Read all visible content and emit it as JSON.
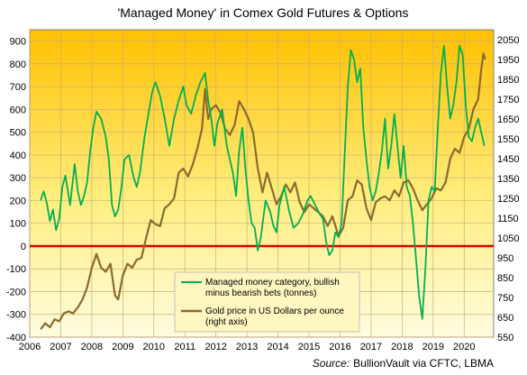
{
  "chart_data": {
    "type": "line",
    "title": "'Managed Money' in Comex Gold Futures & Options",
    "source_label": "Source:",
    "source_text": "BullionVault via CFTC, LBMA",
    "x_ticks": [
      "2006",
      "2007",
      "2008",
      "2009",
      "2010",
      "2011",
      "2012",
      "2013",
      "2014",
      "2015",
      "2016",
      "2017",
      "2018",
      "2019",
      "2020"
    ],
    "xlim": [
      2006.0,
      2020.95
    ],
    "y_left": {
      "lim": [
        -400,
        950
      ],
      "ticks": [
        "900",
        "800",
        "700",
        "600",
        "500",
        "400",
        "300",
        "200",
        "100",
        "0",
        "-100",
        "-200",
        "-300",
        "-400"
      ]
    },
    "y_right": {
      "lim": [
        550,
        2100
      ],
      "ticks": [
        "2050",
        "1950",
        "1850",
        "1750",
        "1650",
        "1550",
        "1450",
        "1350",
        "1250",
        "1150",
        "1050",
        "950",
        "850",
        "750",
        "650",
        "550"
      ]
    },
    "grid": true,
    "zero_line": true,
    "legend_position": "bottom-center",
    "colors": {
      "managed_money": "#00b050",
      "gold_price": "#8b6a30",
      "zero_line": "#dd0000",
      "bg_top": "#ffc000",
      "bg_bottom": "#fffce0"
    },
    "series": [
      {
        "name": "Managed money category, bullish minus bearish bets (tonnes)",
        "legend_line1": "Managed money category, bullish",
        "legend_line2": "minus bearish bets (tonnes)",
        "axis": "left",
        "x": [
          2006.35,
          2006.45,
          2006.55,
          2006.65,
          2006.75,
          2006.85,
          2006.95,
          2007.05,
          2007.15,
          2007.3,
          2007.45,
          2007.55,
          2007.65,
          2007.75,
          2007.85,
          2007.95,
          2008.05,
          2008.15,
          2008.3,
          2008.45,
          2008.55,
          2008.65,
          2008.75,
          2008.85,
          2008.95,
          2009.05,
          2009.2,
          2009.35,
          2009.45,
          2009.55,
          2009.7,
          2009.85,
          2009.95,
          2010.05,
          2010.2,
          2010.35,
          2010.5,
          2010.65,
          2010.8,
          2010.95,
          2011.05,
          2011.2,
          2011.35,
          2011.5,
          2011.65,
          2011.75,
          2011.85,
          2011.95,
          2012.05,
          2012.2,
          2012.35,
          2012.45,
          2012.55,
          2012.65,
          2012.75,
          2012.85,
          2012.95,
          2013.05,
          2013.15,
          2013.25,
          2013.35,
          2013.45,
          2013.6,
          2013.75,
          2013.85,
          2013.95,
          2014.05,
          2014.2,
          2014.35,
          2014.5,
          2014.65,
          2014.8,
          2014.95,
          2015.05,
          2015.2,
          2015.35,
          2015.45,
          2015.55,
          2015.65,
          2015.75,
          2015.85,
          2015.95,
          2016.05,
          2016.15,
          2016.25,
          2016.35,
          2016.45,
          2016.55,
          2016.65,
          2016.75,
          2016.85,
          2016.95,
          2017.05,
          2017.15,
          2017.25,
          2017.35,
          2017.45,
          2017.55,
          2017.65,
          2017.75,
          2017.85,
          2017.95,
          2018.05,
          2018.15,
          2018.25,
          2018.35,
          2018.45,
          2018.55,
          2018.65,
          2018.75,
          2018.85,
          2018.95,
          2019.05,
          2019.15,
          2019.25,
          2019.35,
          2019.45,
          2019.55,
          2019.65,
          2019.75,
          2019.85,
          2019.95,
          2020.05,
          2020.15,
          2020.25,
          2020.35,
          2020.45,
          2020.55,
          2020.65
        ],
        "values": [
          200,
          240,
          190,
          110,
          160,
          70,
          120,
          260,
          310,
          180,
          360,
          240,
          180,
          220,
          280,
          420,
          520,
          590,
          560,
          480,
          380,
          180,
          130,
          160,
          250,
          380,
          400,
          300,
          260,
          320,
          480,
          600,
          680,
          720,
          660,
          560,
          440,
          560,
          640,
          700,
          620,
          580,
          660,
          720,
          760,
          640,
          560,
          440,
          540,
          600,
          440,
          380,
          320,
          220,
          420,
          520,
          340,
          200,
          100,
          80,
          -20,
          40,
          200,
          150,
          90,
          60,
          180,
          260,
          160,
          80,
          100,
          140,
          200,
          220,
          180,
          140,
          120,
          20,
          -40,
          -20,
          60,
          40,
          100,
          400,
          700,
          860,
          820,
          720,
          780,
          520,
          380,
          260,
          200,
          240,
          320,
          420,
          560,
          340,
          440,
          580,
          440,
          300,
          440,
          260,
          220,
          100,
          -60,
          -220,
          -320,
          -100,
          200,
          260,
          240,
          520,
          760,
          880,
          700,
          560,
          620,
          720,
          880,
          840,
          620,
          480,
          460,
          520,
          560,
          500,
          440
        ]
      },
      {
        "name": "Gold price in US Dollars per ounce (right axis)",
        "legend_line1": "Gold price in US Dollars per ounce",
        "legend_line2": "(right axis)",
        "axis": "right",
        "x": [
          2006.35,
          2006.5,
          2006.65,
          2006.8,
          2006.95,
          2007.1,
          2007.25,
          2007.4,
          2007.55,
          2007.7,
          2007.85,
          2008.0,
          2008.15,
          2008.3,
          2008.45,
          2008.6,
          2008.75,
          2008.85,
          2009.0,
          2009.15,
          2009.3,
          2009.45,
          2009.6,
          2009.75,
          2009.9,
          2010.05,
          2010.2,
          2010.35,
          2010.5,
          2010.65,
          2010.8,
          2010.95,
          2011.1,
          2011.25,
          2011.4,
          2011.55,
          2011.65,
          2011.75,
          2011.85,
          2012.0,
          2012.15,
          2012.3,
          2012.45,
          2012.6,
          2012.75,
          2012.9,
          2013.05,
          2013.2,
          2013.35,
          2013.5,
          2013.65,
          2013.8,
          2013.95,
          2014.1,
          2014.25,
          2014.4,
          2014.55,
          2014.7,
          2014.85,
          2015.0,
          2015.15,
          2015.3,
          2015.45,
          2015.6,
          2015.75,
          2015.95,
          2016.1,
          2016.25,
          2016.4,
          2016.55,
          2016.7,
          2016.85,
          2017.0,
          2017.15,
          2017.3,
          2017.45,
          2017.6,
          2017.75,
          2017.9,
          2018.05,
          2018.2,
          2018.35,
          2018.5,
          2018.65,
          2018.8,
          2018.95,
          2019.1,
          2019.25,
          2019.4,
          2019.55,
          2019.7,
          2019.85,
          2020.0,
          2020.15,
          2020.3,
          2020.45,
          2020.55,
          2020.62,
          2020.68
        ],
        "values": [
          590,
          620,
          600,
          640,
          630,
          670,
          680,
          670,
          700,
          740,
          800,
          900,
          970,
          900,
          880,
          920,
          760,
          740,
          860,
          920,
          900,
          940,
          950,
          1050,
          1140,
          1120,
          1110,
          1200,
          1220,
          1250,
          1380,
          1400,
          1360,
          1420,
          1500,
          1600,
          1800,
          1650,
          1700,
          1720,
          1680,
          1600,
          1570,
          1620,
          1740,
          1700,
          1650,
          1580,
          1400,
          1280,
          1380,
          1300,
          1220,
          1260,
          1320,
          1280,
          1330,
          1230,
          1180,
          1220,
          1200,
          1180,
          1160,
          1110,
          1160,
          1060,
          1100,
          1240,
          1260,
          1340,
          1320,
          1200,
          1140,
          1230,
          1250,
          1260,
          1240,
          1290,
          1260,
          1330,
          1340,
          1300,
          1240,
          1190,
          1220,
          1250,
          1300,
          1290,
          1330,
          1450,
          1500,
          1480,
          1560,
          1600,
          1700,
          1750,
          1900,
          1980,
          1950
        ]
      }
    ]
  }
}
